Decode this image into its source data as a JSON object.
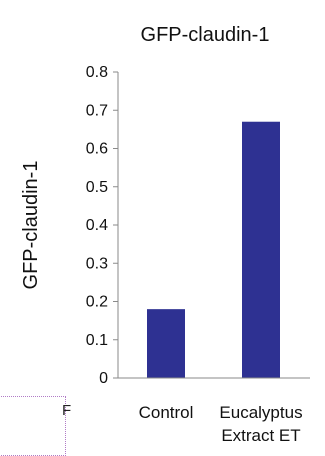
{
  "chart_data": {
    "type": "bar",
    "title": "GFP-claudin-1",
    "ylabel": "GFP-claudin-1",
    "xlabel": "",
    "categories": [
      "Control",
      "Eucalyptus Extract ET"
    ],
    "category_lines": [
      [
        "Control"
      ],
      [
        "Eucalyptus",
        "Extract ET"
      ]
    ],
    "values": [
      0.18,
      0.67
    ],
    "ylim": [
      0,
      0.8
    ],
    "yticks": [
      "0",
      "0.1",
      "0.2",
      "0.3",
      "0.4",
      "0.5",
      "0.6",
      "0.7",
      "0.8"
    ],
    "bar_color": "#2e3192",
    "grid": false,
    "legend": "none"
  },
  "fragment_text": "F"
}
